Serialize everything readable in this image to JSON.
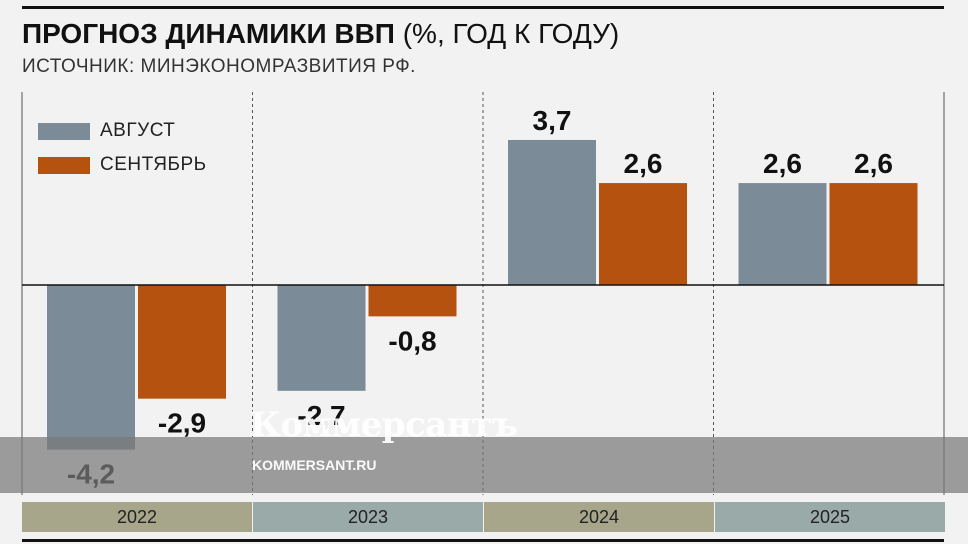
{
  "header": {
    "title_bold": "ПРОГНОЗ ДИНАМИКИ ВВП",
    "title_rest": " (%, ГОД К ГОДУ)",
    "source": "ИСТОЧНИК: МИНЭКОНОМРАЗВИТИЯ РФ."
  },
  "watermark": {
    "logo": "Коммерсантъ",
    "url": "KOMMERSANT.RU"
  },
  "colors": {
    "august": "#7b8b98",
    "september": "#b5520f",
    "year_band_odd": "#a7a68b",
    "year_band_even": "#9aaaa9"
  },
  "chart_data": {
    "type": "bar",
    "categories": [
      "2022",
      "2023",
      "2024",
      "2025"
    ],
    "series": [
      {
        "name": "АВГУСТ",
        "values": [
          -4.2,
          -2.7,
          3.7,
          2.6
        ],
        "labels": [
          "-4,2",
          "-2,7",
          "3,7",
          "2,6"
        ]
      },
      {
        "name": "СЕНТЯБРЬ",
        "values": [
          -2.9,
          -0.8,
          2.6,
          2.6
        ],
        "labels": [
          "-2,9",
          "-0,8",
          "2,6",
          "2,6"
        ]
      }
    ],
    "title": "ПРОГНОЗ ДИНАМИКИ ВВП (%, ГОД К ГОДУ)",
    "ylim": [
      -4.6,
      4.6
    ],
    "legend": "top-left",
    "grid": false
  }
}
